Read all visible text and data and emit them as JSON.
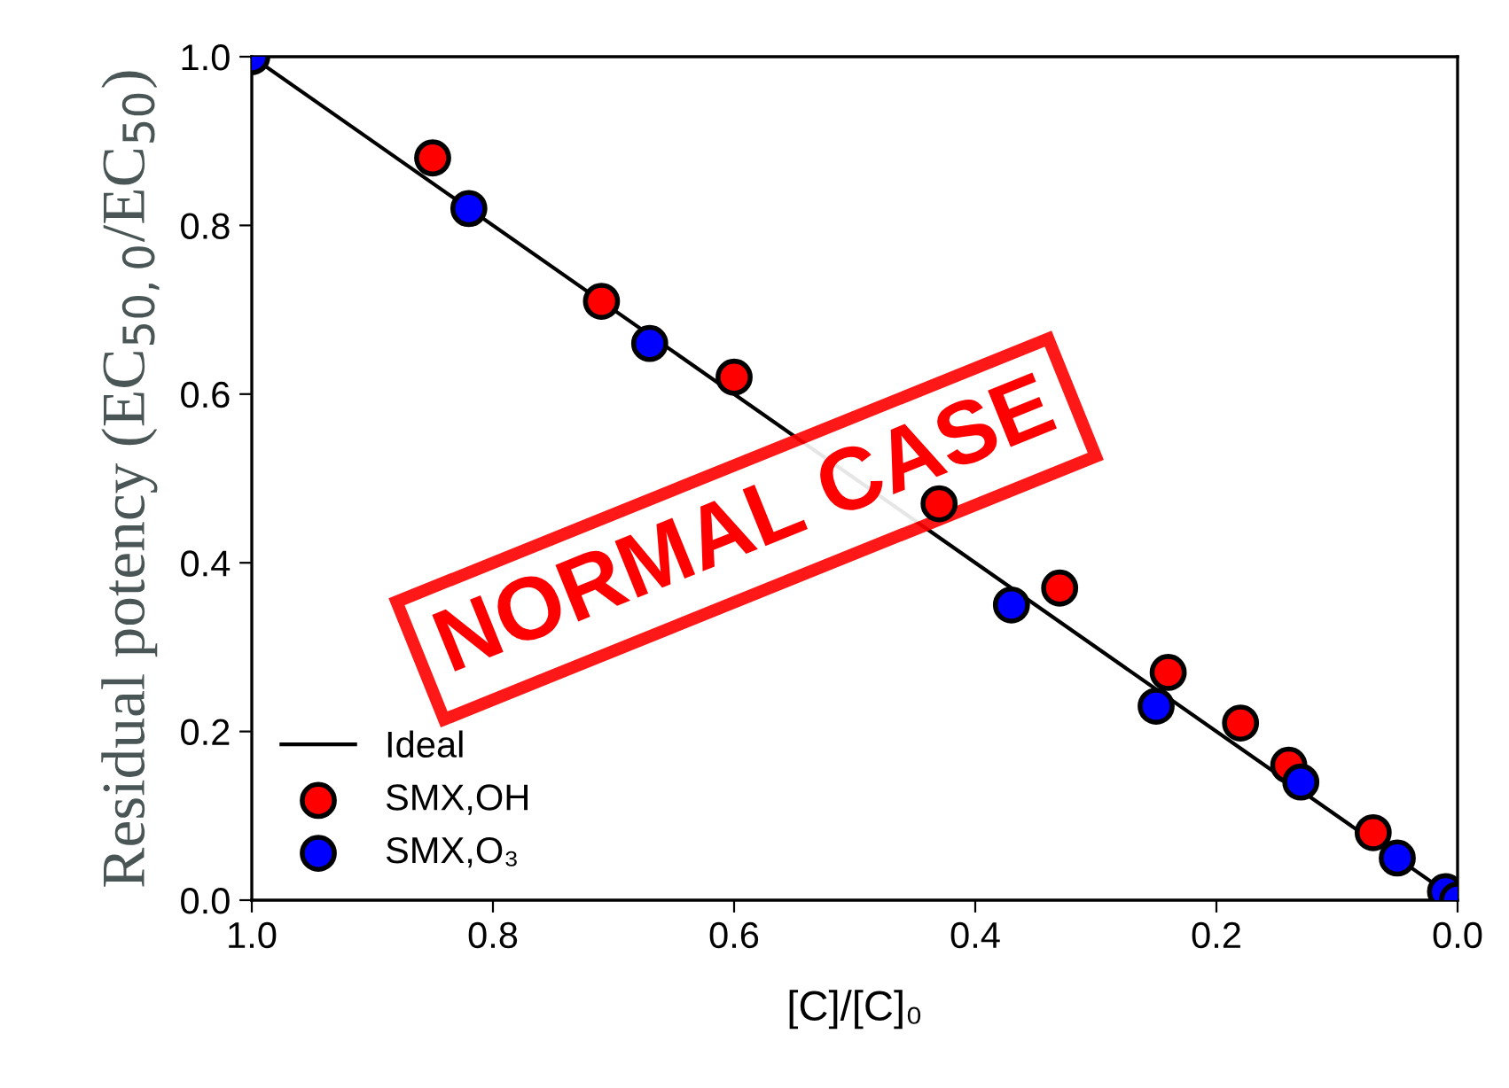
{
  "chart_data": {
    "type": "scatter",
    "xlabel": "[C]/[C]₀",
    "ylabel": "Residual potency (EC$_{50,0}$/EC$_{50}$)",
    "xlim": [
      1.0,
      0.0
    ],
    "ylim": [
      0.0,
      1.0
    ],
    "xticks": [
      {
        "value": 1.0,
        "label": "1.0"
      },
      {
        "value": 0.8,
        "label": "0.8"
      },
      {
        "value": 0.6,
        "label": "0.6"
      },
      {
        "value": 0.4,
        "label": "0.4"
      },
      {
        "value": 0.2,
        "label": "0.2"
      },
      {
        "value": 0.0,
        "label": "0.0"
      }
    ],
    "yticks": [
      {
        "value": 0.0,
        "label": "0.0"
      },
      {
        "value": 0.2,
        "label": "0.2"
      },
      {
        "value": 0.4,
        "label": "0.4"
      },
      {
        "value": 0.6,
        "label": "0.6"
      },
      {
        "value": 0.8,
        "label": "0.8"
      },
      {
        "value": 1.0,
        "label": "1.0"
      }
    ],
    "grid": false,
    "legend": "bottom left",
    "series": [
      {
        "name": "Ideal",
        "type": "line",
        "color": "#000000",
        "line_style": "solid",
        "marker": "none",
        "x": [
          1.0,
          0.0
        ],
        "values": [
          1.0,
          0.0
        ]
      },
      {
        "name": "SMX,OH",
        "color": "#ff0000",
        "marker": "circle",
        "x": [
          0.85,
          0.71,
          0.6,
          0.43,
          0.33,
          0.24,
          0.18,
          0.14,
          0.07
        ],
        "values": [
          0.88,
          0.71,
          0.62,
          0.47,
          0.37,
          0.27,
          0.21,
          0.16,
          0.08
        ]
      },
      {
        "name": "SMX,O₃",
        "color": "#0000ff",
        "marker": "circle",
        "x": [
          1.0,
          0.82,
          0.67,
          0.37,
          0.25,
          0.13,
          0.05,
          0.01,
          0.0
        ],
        "values": [
          1.0,
          0.82,
          0.66,
          0.35,
          0.23,
          0.14,
          0.05,
          0.01,
          0.0
        ]
      }
    ],
    "annotations": [
      "NORMAL CASE"
    ]
  }
}
